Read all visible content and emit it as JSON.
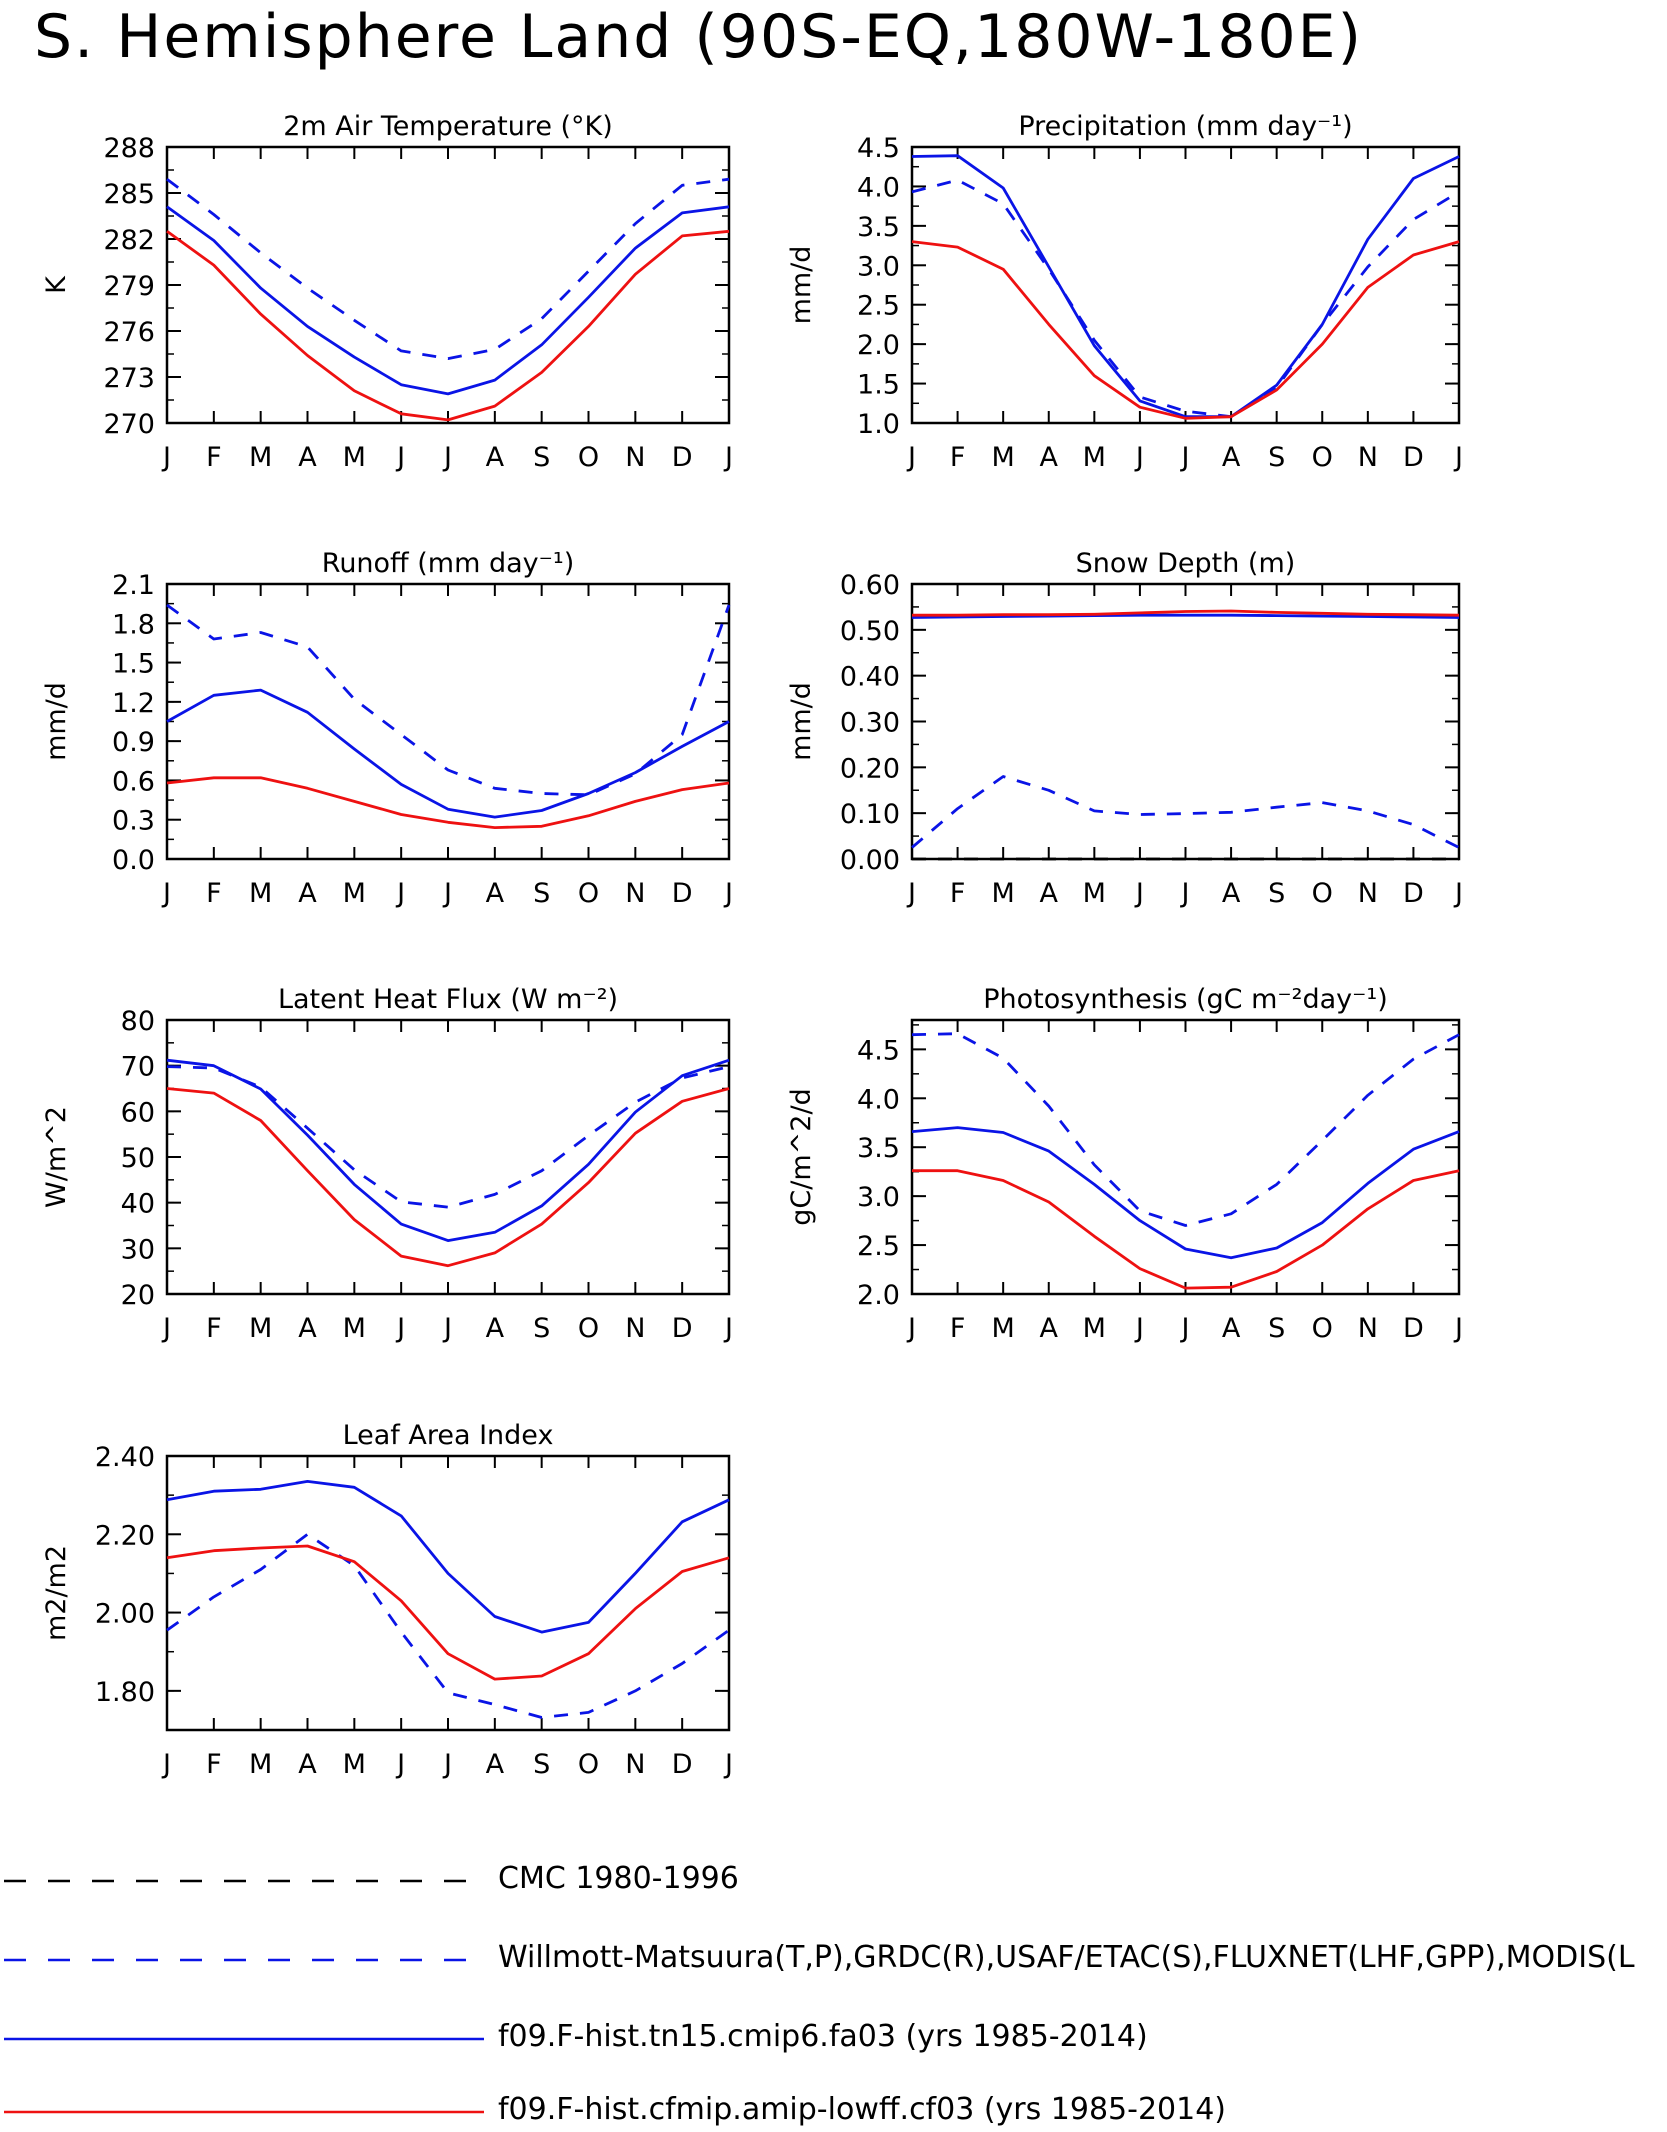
{
  "title": "S. Hemisphere Land (90S-EQ,180W-180E)",
  "colors": {
    "black": "#000000",
    "blue": "#0a14e6",
    "red": "#ee1111"
  },
  "legend": [
    {
      "label": "CMC 1980-1996",
      "color": "#000000",
      "dash": true
    },
    {
      "label": "Willmott-Matsuura(T,P),GRDC(R),USAF/ETAC(S),FLUXNET(LHF,GPP),MODIS(L",
      "color": "#0a14e6",
      "dash": true
    },
    {
      "label": "f09.F-hist.tn15.cmip6.fa03 (yrs 1985-2014)",
      "color": "#0a14e6",
      "dash": false
    },
    {
      "label": "f09.F-hist.cfmip.amip-lowff.cf03 (yrs 1985-2014)",
      "color": "#ee1111",
      "dash": false
    }
  ],
  "chart_data": [
    {
      "type": "line",
      "title": "2m Air Temperature (°K)",
      "ylabel": "K",
      "categories": [
        "J",
        "F",
        "M",
        "A",
        "M",
        "J",
        "J",
        "A",
        "S",
        "O",
        "N",
        "D",
        "J"
      ],
      "ylim": [
        270,
        288
      ],
      "yticks": [
        "270",
        "273",
        "276",
        "279",
        "282",
        "285",
        "288"
      ],
      "series": [
        {
          "name": "Willmott-Matsuura(T,P),GRDC(R),USAF/ETAC(S),FLUXNET(LHF,GPP),MODIS(L",
          "style": "blue-dash",
          "values": [
            285.9,
            283.6,
            281.1,
            278.8,
            276.7,
            274.7,
            274.2,
            274.8,
            276.8,
            279.9,
            283.0,
            285.5,
            285.9
          ]
        },
        {
          "name": "f09.F-hist.tn15.cmip6.fa03 (yrs 1985-2014)",
          "style": "blue-solid",
          "values": [
            284.1,
            281.9,
            278.8,
            276.3,
            274.3,
            272.5,
            271.9,
            272.8,
            275.1,
            278.2,
            281.4,
            283.7,
            284.1
          ]
        },
        {
          "name": "f09.F-hist.cfmip.amip-lowff.cf03 (yrs 1985-2014)",
          "style": "red-solid",
          "values": [
            282.5,
            280.3,
            277.1,
            274.4,
            272.1,
            270.6,
            270.2,
            271.1,
            273.3,
            276.3,
            279.7,
            282.2,
            282.5
          ]
        }
      ]
    },
    {
      "type": "line",
      "title": "Precipitation (mm day⁻¹)",
      "ylabel": "mm/d",
      "categories": [
        "J",
        "F",
        "M",
        "A",
        "M",
        "J",
        "J",
        "A",
        "S",
        "O",
        "N",
        "D",
        "J"
      ],
      "ylim": [
        1.0,
        4.5
      ],
      "yticks": [
        "1.0",
        "1.5",
        "2.0",
        "2.5",
        "3.0",
        "3.5",
        "4.0",
        "4.5"
      ],
      "series": [
        {
          "name": "Willmott-Matsuura(T,P),GRDC(R),USAF/ETAC(S),FLUXNET(LHF,GPP),MODIS(L",
          "style": "blue-dash",
          "values": [
            3.93,
            4.08,
            3.78,
            2.95,
            2.05,
            1.33,
            1.15,
            1.08,
            1.45,
            2.25,
            2.98,
            3.58,
            3.93
          ]
        },
        {
          "name": "f09.F-hist.tn15.cmip6.fa03 (yrs 1985-2014)",
          "style": "blue-solid",
          "values": [
            4.38,
            4.39,
            3.98,
            2.98,
            1.98,
            1.28,
            1.08,
            1.08,
            1.48,
            2.25,
            3.33,
            4.1,
            4.38
          ]
        },
        {
          "name": "f09.F-hist.cfmip.amip-lowff.cf03 (yrs 1985-2014)",
          "style": "red-solid",
          "values": [
            3.3,
            3.23,
            2.95,
            2.25,
            1.6,
            1.2,
            1.06,
            1.08,
            1.42,
            2.0,
            2.72,
            3.13,
            3.3
          ]
        }
      ]
    },
    {
      "type": "line",
      "title": "Runoff (mm day⁻¹)",
      "ylabel": "mm/d",
      "categories": [
        "J",
        "F",
        "M",
        "A",
        "M",
        "J",
        "J",
        "A",
        "S",
        "O",
        "N",
        "D",
        "J"
      ],
      "ylim": [
        0.0,
        2.1
      ],
      "yticks": [
        "0.0",
        "0.3",
        "0.6",
        "0.9",
        "1.2",
        "1.5",
        "1.8",
        "2.1"
      ],
      "series": [
        {
          "name": "Willmott-Matsuura(T,P),GRDC(R),USAF/ETAC(S),FLUXNET(LHF,GPP),MODIS(L",
          "style": "blue-dash",
          "values": [
            1.94,
            1.68,
            1.73,
            1.62,
            1.22,
            0.95,
            0.68,
            0.54,
            0.5,
            0.49,
            0.65,
            0.95,
            1.94
          ]
        },
        {
          "name": "f09.F-hist.tn15.cmip6.fa03 (yrs 1985-2014)",
          "style": "blue-solid",
          "values": [
            1.05,
            1.25,
            1.29,
            1.12,
            0.84,
            0.57,
            0.38,
            0.32,
            0.37,
            0.5,
            0.66,
            0.86,
            1.05
          ]
        },
        {
          "name": "f09.F-hist.cfmip.amip-lowff.cf03 (yrs 1985-2014)",
          "style": "red-solid",
          "values": [
            0.58,
            0.62,
            0.62,
            0.54,
            0.44,
            0.34,
            0.28,
            0.24,
            0.25,
            0.33,
            0.44,
            0.53,
            0.58
          ]
        }
      ]
    },
    {
      "type": "line",
      "title": "Snow Depth (m)",
      "ylabel": "mm/d",
      "categories": [
        "J",
        "F",
        "M",
        "A",
        "M",
        "J",
        "J",
        "A",
        "S",
        "O",
        "N",
        "D",
        "J"
      ],
      "ylim": [
        0.0,
        0.6
      ],
      "yticks": [
        "0.00",
        "0.10",
        "0.20",
        "0.30",
        "0.40",
        "0.50",
        "0.60"
      ],
      "series": [
        {
          "name": "CMC 1980-1996",
          "style": "black-dash",
          "values": [
            0.0,
            0.0,
            0.0,
            0.0,
            0.0,
            0.0,
            0.0,
            0.0,
            0.0,
            0.0,
            0.0,
            0.0,
            0.0
          ]
        },
        {
          "name": "Willmott-Matsuura(T,P),GRDC(R),USAF/ETAC(S),FLUXNET(LHF,GPP),MODIS(L",
          "style": "blue-dash",
          "values": [
            0.025,
            0.11,
            0.18,
            0.15,
            0.105,
            0.097,
            0.099,
            0.102,
            0.113,
            0.123,
            0.105,
            0.075,
            0.025
          ]
        },
        {
          "name": "f09.F-hist.tn15.cmip6.fa03 (yrs 1985-2014)",
          "style": "blue-solid",
          "values": [
            0.527,
            0.528,
            0.529,
            0.53,
            0.531,
            0.532,
            0.532,
            0.532,
            0.531,
            0.53,
            0.529,
            0.528,
            0.527
          ]
        },
        {
          "name": "f09.F-hist.cfmip.amip-lowff.cf03 (yrs 1985-2014)",
          "style": "red-solid",
          "values": [
            0.532,
            0.532,
            0.533,
            0.533,
            0.534,
            0.537,
            0.54,
            0.541,
            0.538,
            0.536,
            0.534,
            0.533,
            0.532
          ]
        }
      ]
    },
    {
      "type": "line",
      "title": "Latent Heat Flux (W m⁻²)",
      "ylabel": "W/m^2",
      "categories": [
        "J",
        "F",
        "M",
        "A",
        "M",
        "J",
        "J",
        "A",
        "S",
        "O",
        "N",
        "D",
        "J"
      ],
      "ylim": [
        20,
        80
      ],
      "yticks": [
        "20",
        "30",
        "40",
        "50",
        "60",
        "70",
        "80"
      ],
      "series": [
        {
          "name": "Willmott-Matsuura(T,P),GRDC(R),USAF/ETAC(S),FLUXNET(LHF,GPP),MODIS(L",
          "style": "blue-dash",
          "values": [
            69.8,
            69.5,
            65.3,
            56.3,
            47.2,
            40.2,
            39.0,
            41.8,
            47.0,
            54.7,
            62.0,
            67.3,
            69.8
          ]
        },
        {
          "name": "f09.F-hist.tn15.cmip6.fa03 (yrs 1985-2014)",
          "style": "blue-solid",
          "values": [
            71.2,
            70.0,
            64.9,
            54.8,
            44.0,
            35.3,
            31.7,
            33.5,
            39.3,
            48.4,
            59.8,
            67.8,
            71.2
          ]
        },
        {
          "name": "f09.F-hist.cfmip.amip-lowff.cf03 (yrs 1985-2014)",
          "style": "red-solid",
          "values": [
            65.0,
            64.0,
            58.0,
            47.0,
            36.3,
            28.3,
            26.2,
            29.0,
            35.3,
            44.4,
            55.2,
            62.2,
            65.0
          ]
        }
      ]
    },
    {
      "type": "line",
      "title": "Photosynthesis (gC m⁻²day⁻¹)",
      "ylabel": "gC/m^2/d",
      "categories": [
        "J",
        "F",
        "M",
        "A",
        "M",
        "J",
        "J",
        "A",
        "S",
        "O",
        "N",
        "D",
        "J"
      ],
      "ylim": [
        2.0,
        4.8
      ],
      "yticks": [
        "2.0",
        "2.5",
        "3.0",
        "3.5",
        "4.0",
        "4.5"
      ],
      "series": [
        {
          "name": "Willmott-Matsuura(T,P),GRDC(R),USAF/ETAC(S),FLUXNET(LHF,GPP),MODIS(L",
          "style": "blue-dash",
          "values": [
            4.65,
            4.66,
            4.41,
            3.92,
            3.32,
            2.85,
            2.7,
            2.82,
            3.12,
            3.57,
            4.03,
            4.4,
            4.65
          ]
        },
        {
          "name": "f09.F-hist.tn15.cmip6.fa03 (yrs 1985-2014)",
          "style": "blue-solid",
          "values": [
            3.66,
            3.7,
            3.65,
            3.46,
            3.12,
            2.75,
            2.46,
            2.37,
            2.47,
            2.73,
            3.13,
            3.48,
            3.66
          ]
        },
        {
          "name": "f09.F-hist.cfmip.amip-lowff.cf03 (yrs 1985-2014)",
          "style": "red-solid",
          "values": [
            3.26,
            3.26,
            3.16,
            2.94,
            2.59,
            2.26,
            2.06,
            2.07,
            2.23,
            2.5,
            2.87,
            3.16,
            3.26
          ]
        }
      ]
    },
    {
      "type": "line",
      "title": "Leaf Area Index",
      "ylabel": "m2/m2",
      "categories": [
        "J",
        "F",
        "M",
        "A",
        "M",
        "J",
        "J",
        "A",
        "S",
        "O",
        "N",
        "D",
        "J"
      ],
      "ylim": [
        1.7,
        2.4
      ],
      "yticks": [
        "1.80",
        "2.00",
        "2.20",
        "2.40"
      ],
      "series": [
        {
          "name": "Willmott-Matsuura(T,P),GRDC(R),USAF/ETAC(S),FLUXNET(LHF,GPP),MODIS(L",
          "style": "blue-dash",
          "values": [
            1.955,
            2.04,
            2.11,
            2.2,
            2.12,
            1.95,
            1.795,
            1.765,
            1.732,
            1.745,
            1.8,
            1.87,
            1.955
          ]
        },
        {
          "name": "f09.F-hist.tn15.cmip6.fa03 (yrs 1985-2014)",
          "style": "blue-solid",
          "values": [
            2.288,
            2.31,
            2.315,
            2.335,
            2.32,
            2.247,
            2.1,
            1.99,
            1.95,
            1.975,
            2.1,
            2.232,
            2.288
          ]
        },
        {
          "name": "f09.F-hist.cfmip.amip-lowff.cf03 (yrs 1985-2014)",
          "style": "red-solid",
          "values": [
            2.14,
            2.158,
            2.165,
            2.17,
            2.13,
            2.03,
            1.895,
            1.83,
            1.838,
            1.895,
            2.01,
            2.105,
            2.14
          ]
        }
      ]
    }
  ]
}
